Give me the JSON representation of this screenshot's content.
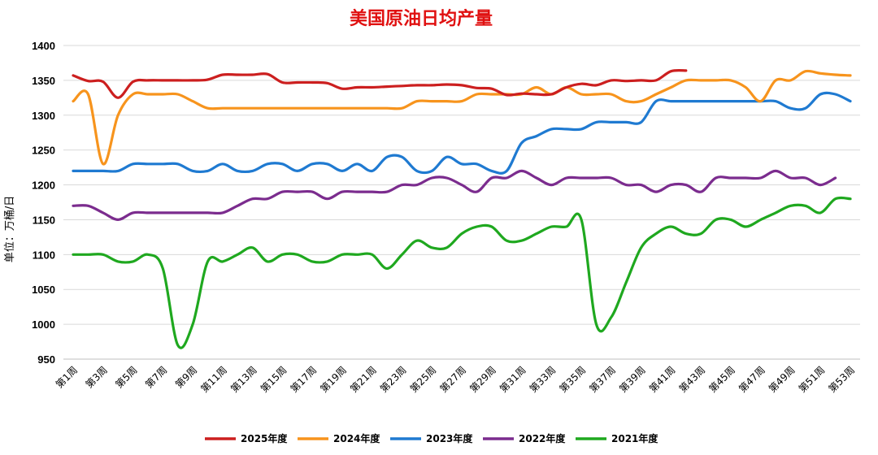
{
  "chart_data": {
    "type": "line",
    "title": "美国原油日均产量",
    "ylabel": "单位：万桶/日",
    "xlabel": "",
    "ylim": [
      950,
      1400
    ],
    "yticks": [
      950,
      1000,
      1050,
      1100,
      1150,
      1200,
      1250,
      1300,
      1350,
      1400
    ],
    "grid": true,
    "legend_position": "bottom",
    "x_tick_labels": [
      "第1周",
      "第3周",
      "第5周",
      "第7周",
      "第9周",
      "第11周",
      "第13周",
      "第15周",
      "第17周",
      "第19周",
      "第21周",
      "第23周",
      "第25周",
      "第27周",
      "第29周",
      "第31周",
      "第33周",
      "第35周",
      "第37周",
      "第39周",
      "第41周",
      "第43周",
      "第45周",
      "第47周",
      "第49周",
      "第51周",
      "第53周"
    ],
    "series": [
      {
        "name": "2025年度",
        "color": "#CC1F1F",
        "values": [
          1357,
          1349,
          1348,
          1325,
          1348,
          1350,
          1350,
          1350,
          1350,
          1351,
          1358,
          1358,
          1358,
          1359,
          1347,
          1347,
          1347,
          1346,
          1338,
          1340,
          1340,
          1341,
          1342,
          1343,
          1343,
          1344,
          1343,
          1339,
          1338,
          1329,
          1331,
          1330,
          1330,
          1340,
          1345,
          1343,
          1350,
          1349,
          1350,
          1350,
          1363,
          1364
        ]
      },
      {
        "name": "2024年度",
        "color": "#F7941D",
        "values": [
          1320,
          1330,
          1230,
          1300,
          1330,
          1330,
          1330,
          1330,
          1320,
          1310,
          1310,
          1310,
          1310,
          1310,
          1310,
          1310,
          1310,
          1310,
          1310,
          1310,
          1310,
          1310,
          1310,
          1320,
          1320,
          1320,
          1320,
          1330,
          1330,
          1330,
          1330,
          1340,
          1330,
          1340,
          1330,
          1330,
          1330,
          1320,
          1320,
          1330,
          1340,
          1350,
          1350,
          1350,
          1350,
          1340,
          1320,
          1350,
          1350,
          1363,
          1360,
          1358,
          1357
        ]
      },
      {
        "name": "2023年度",
        "color": "#1F7AD1",
        "values": [
          1220,
          1220,
          1220,
          1220,
          1230,
          1230,
          1230,
          1230,
          1220,
          1220,
          1230,
          1220,
          1220,
          1230,
          1230,
          1220,
          1230,
          1230,
          1220,
          1230,
          1220,
          1240,
          1240,
          1220,
          1220,
          1240,
          1230,
          1230,
          1220,
          1220,
          1260,
          1270,
          1280,
          1280,
          1280,
          1290,
          1290,
          1290,
          1290,
          1320,
          1320,
          1320,
          1320,
          1320,
          1320,
          1320,
          1320,
          1320,
          1310,
          1310,
          1330,
          1330,
          1320
        ]
      },
      {
        "name": "2022年度",
        "color": "#7B2C8E",
        "values": [
          1170,
          1170,
          1160,
          1150,
          1160,
          1160,
          1160,
          1160,
          1160,
          1160,
          1160,
          1170,
          1180,
          1180,
          1190,
          1190,
          1190,
          1180,
          1190,
          1190,
          1190,
          1190,
          1200,
          1200,
          1210,
          1210,
          1200,
          1190,
          1210,
          1210,
          1220,
          1210,
          1200,
          1210,
          1210,
          1210,
          1210,
          1200,
          1200,
          1190,
          1200,
          1200,
          1190,
          1210,
          1210,
          1210,
          1210,
          1220,
          1210,
          1210,
          1200,
          1210
        ]
      },
      {
        "name": "2021年度",
        "color": "#1FA81F",
        "values": [
          1100,
          1100,
          1100,
          1090,
          1090,
          1100,
          1080,
          970,
          1000,
          1090,
          1090,
          1100,
          1110,
          1090,
          1100,
          1100,
          1090,
          1090,
          1100,
          1100,
          1100,
          1080,
          1100,
          1120,
          1110,
          1110,
          1130,
          1140,
          1140,
          1120,
          1120,
          1130,
          1140,
          1140,
          1150,
          1000,
          1010,
          1060,
          1110,
          1130,
          1140,
          1130,
          1130,
          1150,
          1150,
          1140,
          1150,
          1160,
          1170,
          1170,
          1160,
          1180,
          1180
        ]
      }
    ]
  }
}
